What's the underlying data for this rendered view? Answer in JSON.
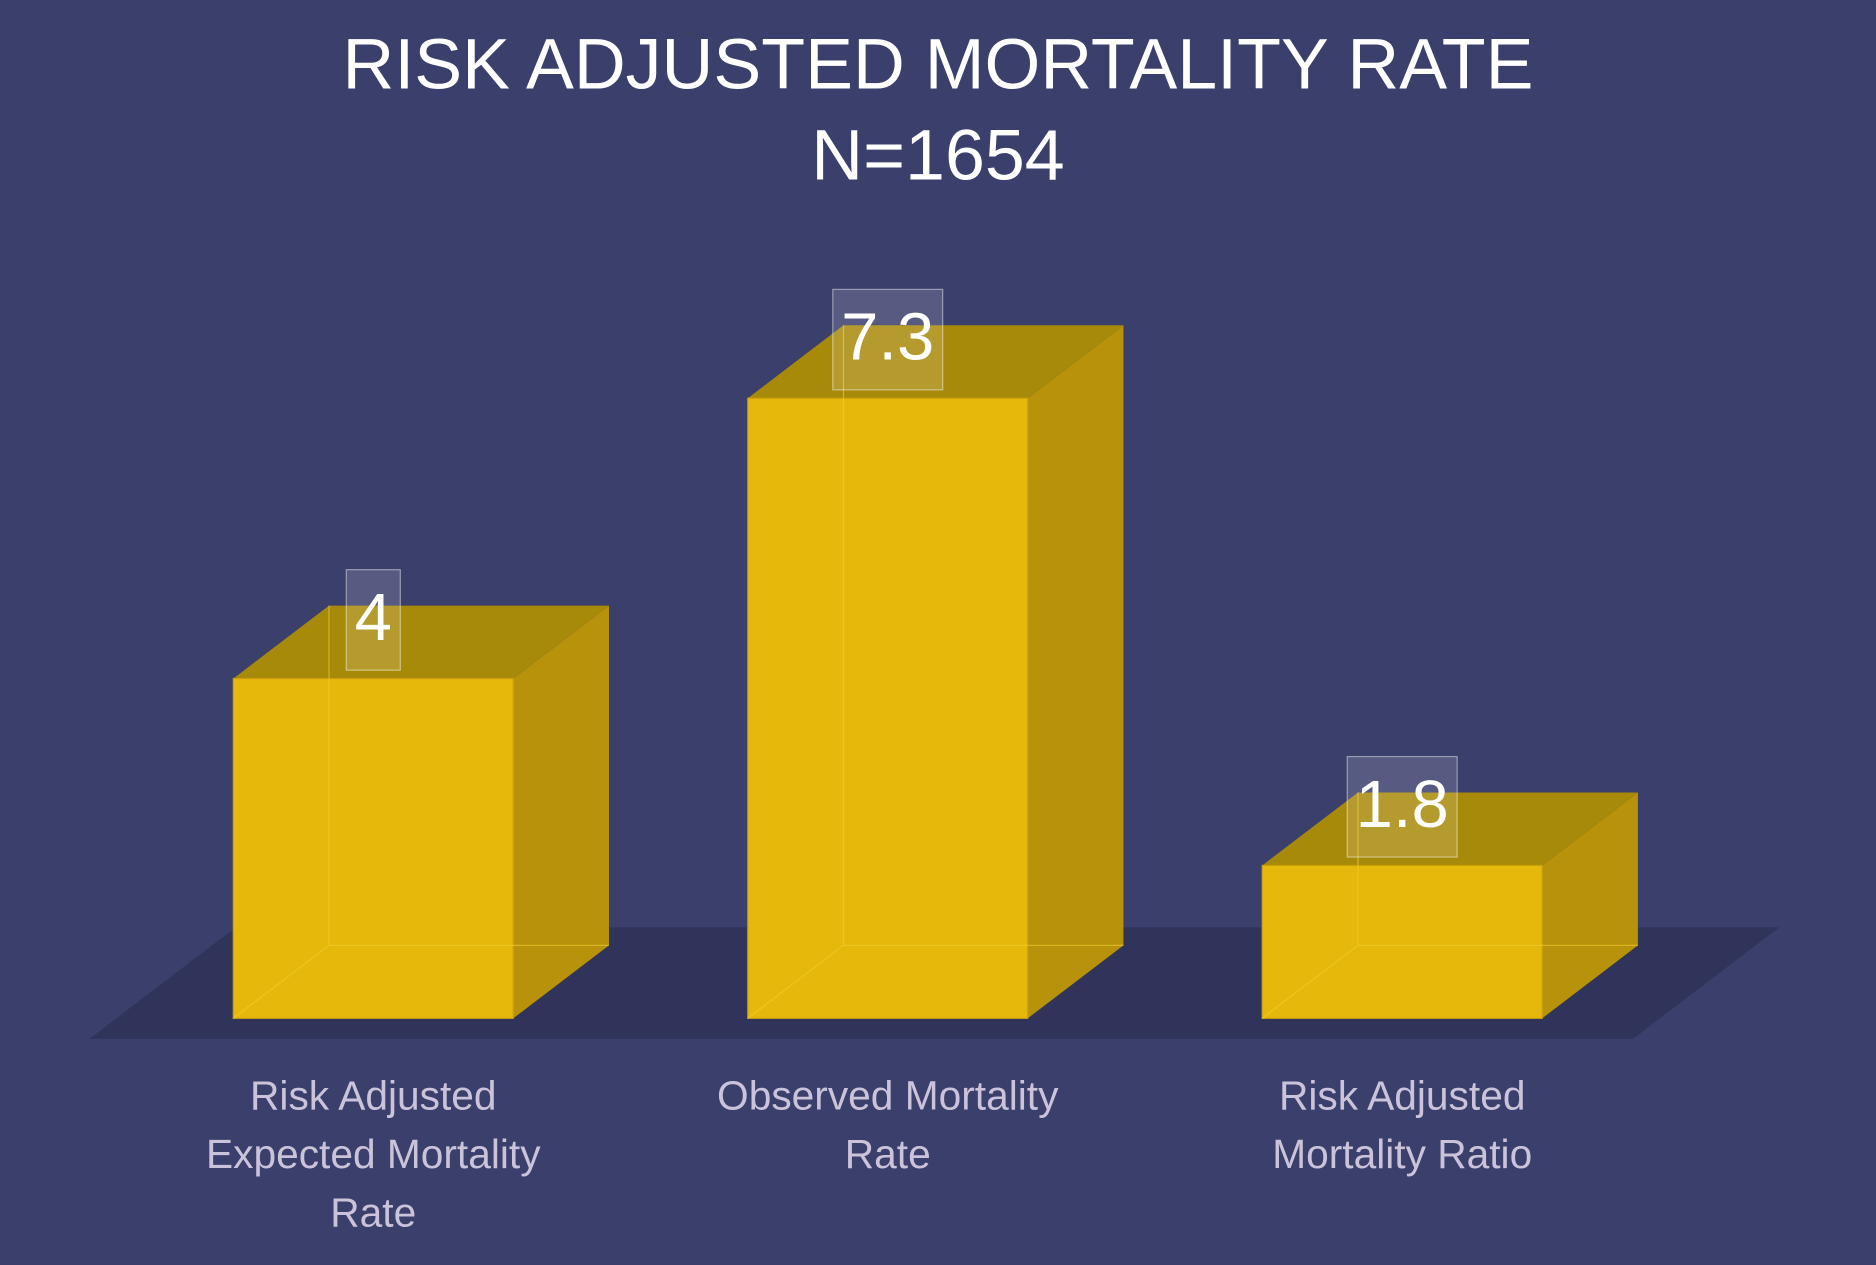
{
  "chart_data": {
    "type": "bar3d",
    "title": "RISK ADJUSTED MORTALITY RATE",
    "subtitle": "N=1654",
    "categories": [
      "Risk Adjusted Expected Mortality Rate",
      "Observed Mortality Rate",
      "Risk Adjusted Mortality Ratio"
    ],
    "values": [
      4,
      7.3,
      1.8
    ],
    "color": "#e6b80c",
    "ylim": [
      0,
      10
    ]
  }
}
